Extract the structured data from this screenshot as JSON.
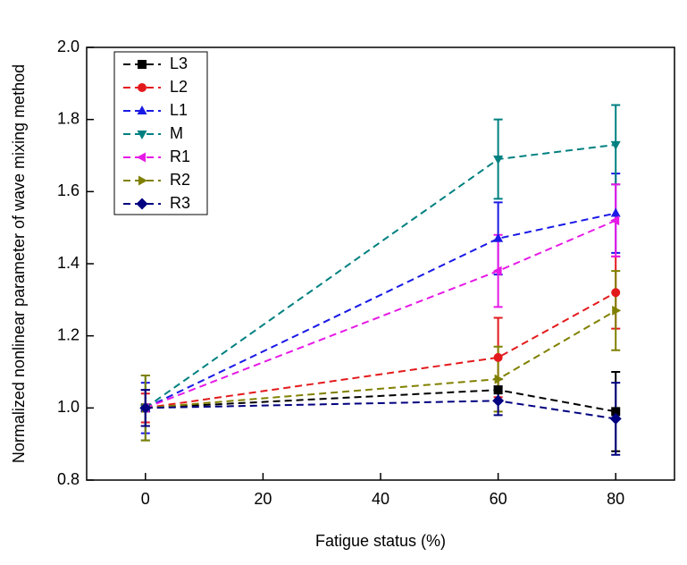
{
  "chart_data": {
    "type": "line",
    "xlabel": "Fatigue status (%)",
    "ylabel": "Normalized nonlinear parameter of wave mixing method",
    "x": [
      0,
      60,
      80
    ],
    "xlim": [
      -10,
      90
    ],
    "xticks": [
      0,
      20,
      40,
      60,
      80
    ],
    "ylim": [
      0.8,
      2.0
    ],
    "yticks": [
      0.8,
      {
        "value": 1,
        "label": "1.0"
      },
      1.2,
      1.4,
      1.6,
      1.8,
      {
        "value": 2,
        "label": "2.0"
      }
    ],
    "legend": "upper left",
    "series": [
      {
        "name": "L3",
        "color": "#000000",
        "marker": "square",
        "values": [
          1.0,
          1.05,
          0.99
        ],
        "errors": [
          0.05,
          0.03,
          0.11
        ]
      },
      {
        "name": "L2",
        "color": "#e31a1c",
        "marker": "circle",
        "values": [
          1.0,
          1.14,
          1.32
        ],
        "errors": [
          0.04,
          0.11,
          0.1
        ]
      },
      {
        "name": "L1",
        "color": "#1a1ae6",
        "marker": "triangle-up",
        "values": [
          1.0,
          1.47,
          1.54
        ],
        "errors": [
          0.07,
          0.1,
          0.11
        ]
      },
      {
        "name": "M",
        "color": "#008080",
        "marker": "triangle-down",
        "values": [
          1.0,
          1.69,
          1.73
        ],
        "errors": [
          0.09,
          0.11,
          0.11
        ]
      },
      {
        "name": "R1",
        "color": "#e619e6",
        "marker": "triangle-left",
        "values": [
          1.0,
          1.38,
          1.52
        ],
        "errors": [
          0.05,
          0.1,
          0.1
        ]
      },
      {
        "name": "R2",
        "color": "#808000",
        "marker": "triangle-right",
        "values": [
          1.0,
          1.08,
          1.27
        ],
        "errors": [
          0.09,
          0.09,
          0.11
        ]
      },
      {
        "name": "R3",
        "color": "#000080",
        "marker": "diamond",
        "values": [
          1.0,
          1.02,
          0.97
        ],
        "errors": [
          0.05,
          0.04,
          0.1
        ]
      }
    ]
  }
}
